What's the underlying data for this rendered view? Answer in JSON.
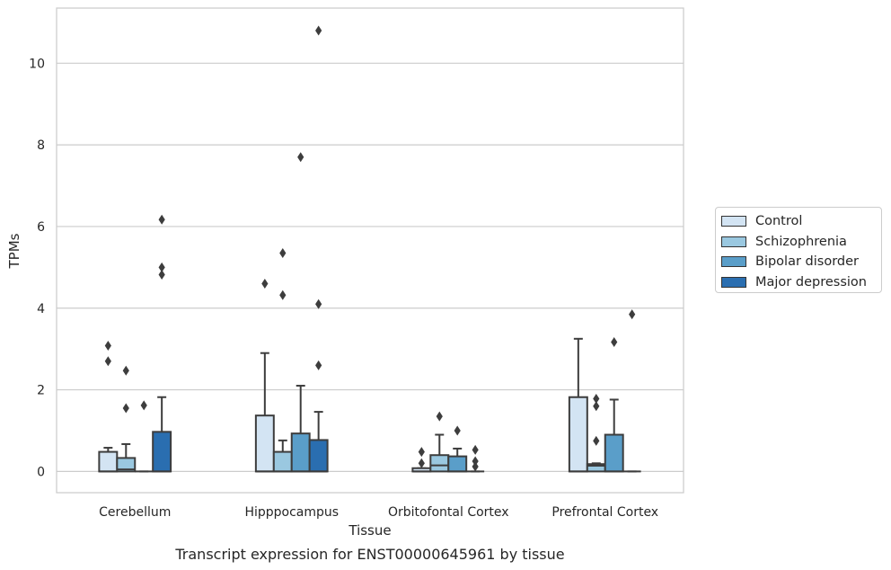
{
  "chart_data": {
    "type": "box",
    "title": "Transcript expression for ENST00000645961 by tissue",
    "xlabel": "Tissue",
    "ylabel": "TPMs",
    "ylim": [
      -0.52,
      11.35
    ],
    "yticks": [
      0,
      2,
      4,
      6,
      8,
      10
    ],
    "grid": true,
    "legend_position": "right",
    "categories": [
      "Cerebellum",
      "Hipppocampus",
      "Orbitofontal Cortex",
      "Prefrontal Cortex"
    ],
    "series": [
      {
        "name": "Control",
        "color": "#d3e4f3",
        "boxes": [
          {
            "q1": 0,
            "median": 0.0,
            "q3": 0.48,
            "whisker_low": 0,
            "whisker_high": 0.58,
            "outliers": [
              2.7,
              3.08
            ]
          },
          {
            "q1": 0,
            "median": 0.0,
            "q3": 1.37,
            "whisker_low": 0,
            "whisker_high": 2.9,
            "outliers": [
              4.6
            ]
          },
          {
            "q1": 0,
            "median": 0.0,
            "q3": 0.08,
            "whisker_low": 0,
            "whisker_high": 0.08,
            "outliers": [
              0.2,
              0.48
            ]
          },
          {
            "q1": 0,
            "median": 0.0,
            "q3": 1.82,
            "whisker_low": 0,
            "whisker_high": 3.25,
            "outliers": []
          }
        ]
      },
      {
        "name": "Schizophrenia",
        "color": "#9ac8e0",
        "boxes": [
          {
            "q1": 0,
            "median": 0.05,
            "q3": 0.33,
            "whisker_low": 0,
            "whisker_high": 0.67,
            "outliers": [
              1.55,
              2.47
            ]
          },
          {
            "q1": 0,
            "median": 0.0,
            "q3": 0.48,
            "whisker_low": 0,
            "whisker_high": 0.76,
            "outliers": [
              4.32,
              5.35
            ]
          },
          {
            "q1": 0,
            "median": 0.15,
            "q3": 0.4,
            "whisker_low": 0,
            "whisker_high": 0.9,
            "outliers": [
              1.35
            ]
          },
          {
            "q1": 0,
            "median": 0.14,
            "q3": 0.18,
            "whisker_low": 0,
            "whisker_high": 0.2,
            "outliers": [
              0.75,
              1.6,
              1.78
            ]
          }
        ]
      },
      {
        "name": "Bipolar disorder",
        "color": "#5a9ec9",
        "boxes": [
          {
            "q1": 0,
            "median": 0.0,
            "q3": 0.0,
            "whisker_low": 0,
            "whisker_high": 0.0,
            "outliers": [
              1.62
            ]
          },
          {
            "q1": 0,
            "median": 0.0,
            "q3": 0.93,
            "whisker_low": 0,
            "whisker_high": 2.1,
            "outliers": [
              7.7
            ]
          },
          {
            "q1": 0,
            "median": 0.0,
            "q3": 0.37,
            "whisker_low": 0,
            "whisker_high": 0.56,
            "outliers": [
              1.0
            ]
          },
          {
            "q1": 0,
            "median": 0.0,
            "q3": 0.9,
            "whisker_low": 0,
            "whisker_high": 1.76,
            "outliers": [
              3.17
            ]
          }
        ]
      },
      {
        "name": "Major depression",
        "color": "#2a6eb0",
        "boxes": [
          {
            "q1": 0,
            "median": 0.0,
            "q3": 0.97,
            "whisker_low": 0,
            "whisker_high": 1.82,
            "outliers": [
              4.82,
              5.0,
              6.17
            ]
          },
          {
            "q1": 0,
            "median": 0.0,
            "q3": 0.77,
            "whisker_low": 0,
            "whisker_high": 1.46,
            "outliers": [
              2.6,
              4.1,
              10.8
            ]
          },
          {
            "q1": 0,
            "median": 0.0,
            "q3": 0.0,
            "whisker_low": 0,
            "whisker_high": 0.0,
            "outliers": [
              0.12,
              0.25,
              0.53
            ]
          },
          {
            "q1": 0,
            "median": 0.0,
            "q3": 0.0,
            "whisker_low": 0,
            "whisker_high": 0.0,
            "outliers": [
              3.85
            ]
          }
        ]
      }
    ]
  }
}
